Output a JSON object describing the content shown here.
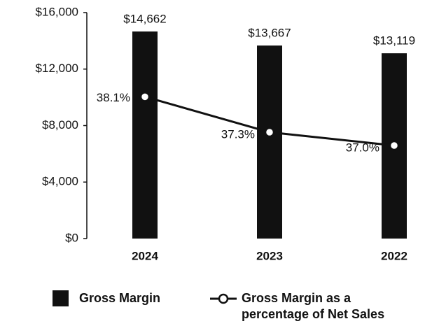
{
  "chart_data": {
    "type": "bar_line",
    "categories": [
      "2024",
      "2023",
      "2022"
    ],
    "series": [
      {
        "name": "Gross Margin",
        "type": "bar",
        "color": "#111111",
        "values": [
          14662,
          13667,
          13119
        ],
        "value_labels": [
          "$14,662",
          "$13,667",
          "$13,119"
        ]
      },
      {
        "name": "Gross Margin as a percentage of Net Sales",
        "type": "line",
        "axis": "y2",
        "color": "#111111",
        "values": [
          38.1,
          37.3,
          37.0
        ],
        "value_labels": [
          "38.1%",
          "37.3%",
          "37.0%"
        ]
      }
    ],
    "ylim": [
      0,
      16000
    ],
    "yticks": [
      {
        "value": 0,
        "label": "$0"
      },
      {
        "value": 4000,
        "label": "$4,000"
      },
      {
        "value": 8000,
        "label": "$8,000"
      },
      {
        "value": 12000,
        "label": "$12,000"
      },
      {
        "value": 16000,
        "label": "$16,000"
      }
    ],
    "y2lim": [
      34.9,
      40.0
    ],
    "grid": false
  }
}
